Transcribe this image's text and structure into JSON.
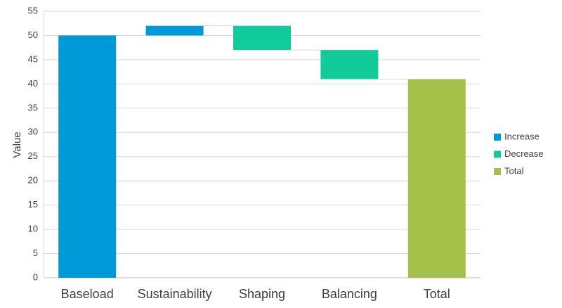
{
  "chart_data": {
    "type": "waterfall",
    "categories": [
      "Baseload",
      "Sustainability",
      "Shaping",
      "Balancing",
      "Total"
    ],
    "steps": [
      {
        "category": "Baseload",
        "kind": "Increase",
        "start": 0,
        "end": 50
      },
      {
        "category": "Sustainability",
        "kind": "Increase",
        "start": 50,
        "end": 52
      },
      {
        "category": "Shaping",
        "kind": "Decrease",
        "start": 52,
        "end": 47
      },
      {
        "category": "Balancing",
        "kind": "Decrease",
        "start": 47,
        "end": 41
      },
      {
        "category": "Total",
        "kind": "Total",
        "start": 0,
        "end": 41
      }
    ],
    "title": "",
    "xlabel": "",
    "ylabel": "Value",
    "ylim": [
      0,
      55
    ],
    "yticks": [
      0,
      5,
      10,
      15,
      20,
      25,
      30,
      35,
      40,
      45,
      50,
      55
    ],
    "grid": true,
    "legend": {
      "placement": "right",
      "entries": [
        {
          "name": "Increase",
          "color": "#0099D8"
        },
        {
          "name": "Decrease",
          "color": "#11CC9A"
        },
        {
          "name": "Total",
          "color": "#A6C14A"
        }
      ]
    },
    "colors": {
      "Increase": "#0099D8",
      "Decrease": "#11CC9A",
      "Total": "#A6C14A",
      "grid": "#D9D9D9",
      "connector": "#D9D9D9"
    }
  }
}
